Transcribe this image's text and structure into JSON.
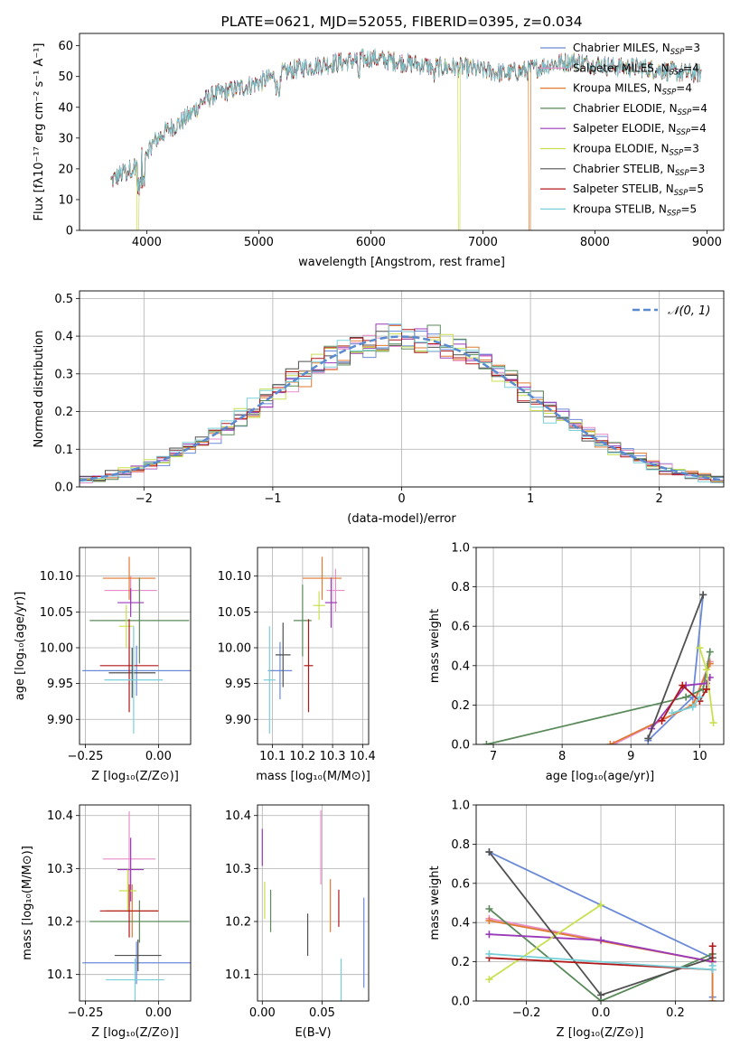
{
  "colors": [
    "#6a8ad8",
    "#e88ec8",
    "#e07a30",
    "#5a8a5a",
    "#9a3ab8",
    "#c8e050",
    "#505050",
    "#b01818",
    "#7ad0d8"
  ],
  "chart_data": [
    {
      "id": "spectrum",
      "type": "line",
      "title": "PLATE=0621, MJD=52055, FIBERID=0395, z=0.034",
      "xlabel": "wavelength [Angstrom, rest frame]",
      "ylabel": "Flux [fλ10⁻¹⁷ erg cm⁻² s⁻¹ A⁻¹]",
      "xlim": [
        3400,
        9150
      ],
      "ylim": [
        0,
        64
      ],
      "xticks": [
        4000,
        5000,
        6000,
        7000,
        8000,
        9000
      ],
      "yticks": [
        0,
        10,
        20,
        30,
        40,
        50,
        60
      ],
      "grid": false,
      "legend_loc": "right",
      "series": [
        {
          "name": "Chabrier MILES, N_SSP=3"
        },
        {
          "name": "Salpeter MILES, N_SSP=4"
        },
        {
          "name": "Kroupa MILES, N_SSP=4"
        },
        {
          "name": "Chabrier ELODIE, N_SSP=4"
        },
        {
          "name": "Salpeter ELODIE, N_SSP=4"
        },
        {
          "name": "Kroupa ELODIE, N_SSP=3"
        },
        {
          "name": "Chabrier STELIB, N_SSP=3"
        },
        {
          "name": "Salpeter STELIB, N_SSP=5"
        },
        {
          "name": "Kroupa STELIB, N_SSP=5"
        }
      ],
      "continuum": {
        "x": [
          3680,
          3800,
          3900,
          4000,
          4100,
          4200,
          4300,
          4400,
          4500,
          4600,
          4800,
          5000,
          5200,
          5400,
          5600,
          5800,
          6000,
          6200,
          6400,
          6600,
          6800,
          7000,
          7200,
          7400,
          7600,
          7800,
          8000,
          8200,
          8400,
          8600,
          8800,
          8950
        ],
        "y": [
          16,
          19,
          21,
          26,
          30,
          33,
          35,
          38,
          42,
          44,
          46,
          48,
          51,
          53,
          54,
          55,
          56,
          55,
          54,
          53,
          53,
          52,
          51,
          52,
          54,
          55,
          54,
          53,
          53,
          52,
          51,
          51
        ]
      },
      "drops": [
        {
          "color_index": 5,
          "x": 3920
        },
        {
          "color_index": 5,
          "x": 6790
        },
        {
          "color_index": 2,
          "x": 7420
        }
      ]
    },
    {
      "id": "residuals",
      "type": "line",
      "xlabel": "(data-model)/error",
      "ylabel": "Normed distribution",
      "xlim": [
        -2.5,
        2.5
      ],
      "ylim": [
        0,
        0.52
      ],
      "xticks": [
        -2,
        -1,
        0,
        1,
        2
      ],
      "yticks": [
        0.0,
        0.1,
        0.2,
        0.3,
        0.4,
        0.5
      ],
      "xtick_labels": [
        "−2",
        "−1",
        "0",
        "1",
        "2"
      ],
      "ytick_labels": [
        "0.0",
        "0.1",
        "0.2",
        "0.3",
        "0.4",
        "0.5"
      ],
      "grid": true,
      "legend_loc": "upper right",
      "reference": {
        "name": "𝒩(0, 1)",
        "mean": 0,
        "sigma": 1,
        "color": "#5a8ad0"
      },
      "bin_width": 0.1
    },
    {
      "id": "age-vs-Z",
      "type": "scatter",
      "xlabel": "Z [log₁₀(Z/Z⊙)]",
      "ylabel": "age  [log₁₀(age/yr)]",
      "xlim": [
        -0.27,
        0.11
      ],
      "ylim": [
        9.865,
        10.14
      ],
      "xticks": [
        -0.25,
        0.0
      ],
      "xtick_labels": [
        "−0.25",
        "0.00"
      ],
      "yticks": [
        9.9,
        9.95,
        10.0,
        10.05,
        10.1
      ],
      "ytick_labels": [
        "9.90",
        "9.95",
        "10.00",
        "10.05",
        "10.10"
      ],
      "grid": true,
      "points": [
        {
          "c": 0,
          "x": -0.075,
          "xe": 0.185,
          "y": 9.968,
          "ye": 0.035
        },
        {
          "c": 1,
          "x": -0.095,
          "xe": 0.09,
          "y": 10.08,
          "ye": 0.02
        },
        {
          "c": 2,
          "x": -0.1,
          "xe": 0.09,
          "y": 10.097,
          "ye": 0.03
        },
        {
          "c": 3,
          "x": -0.065,
          "xe": 0.17,
          "y": 10.038,
          "ye": 0.06
        },
        {
          "c": 4,
          "x": -0.095,
          "xe": 0.045,
          "y": 10.063,
          "ye": 0.02
        },
        {
          "c": 5,
          "x": -0.11,
          "xe": 0.025,
          "y": 10.03,
          "ye": 0.03
        },
        {
          "c": 6,
          "x": -0.09,
          "xe": 0.08,
          "y": 9.965,
          "ye": 0.035
        },
        {
          "c": 7,
          "x": -0.1,
          "xe": 0.1,
          "y": 9.975,
          "ye": 0.065
        },
        {
          "c": 8,
          "x": -0.085,
          "xe": 0.1,
          "y": 9.955,
          "ye": 0.075
        }
      ]
    },
    {
      "id": "age-vs-mass",
      "type": "scatter",
      "xlabel": "mass [log₁₀(M/M⊙)]",
      "ylabel": "",
      "xlim": [
        10.05,
        10.42
      ],
      "ylim": [
        9.865,
        10.14
      ],
      "xticks": [
        10.1,
        10.2,
        10.3,
        10.4
      ],
      "xtick_labels": [
        "10.1",
        "10.2",
        "10.3",
        "10.4"
      ],
      "yticks": [
        9.9,
        9.95,
        10.0,
        10.05,
        10.1
      ],
      "ytick_labels": [
        "9.90",
        "9.95",
        "10.00",
        "10.05",
        "10.10"
      ],
      "grid": true,
      "points": [
        {
          "c": 0,
          "x": 10.125,
          "xe": 0.04,
          "y": 9.968,
          "ye": 0.04
        },
        {
          "c": 1,
          "x": 10.31,
          "xe": 0.03,
          "y": 10.08,
          "ye": 0.03
        },
        {
          "c": 2,
          "x": 10.265,
          "xe": 0.065,
          "y": 10.097,
          "ye": 0.03
        },
        {
          "c": 3,
          "x": 10.2,
          "xe": 0.03,
          "y": 10.038,
          "ye": 0.05
        },
        {
          "c": 4,
          "x": 10.295,
          "xe": 0.02,
          "y": 10.063,
          "ye": 0.035
        },
        {
          "c": 5,
          "x": 10.255,
          "xe": 0.02,
          "y": 10.059,
          "ye": 0.02
        },
        {
          "c": 6,
          "x": 10.135,
          "xe": 0.025,
          "y": 9.99,
          "ye": 0.045
        },
        {
          "c": 7,
          "x": 10.22,
          "xe": 0.015,
          "y": 9.975,
          "ye": 0.065
        },
        {
          "c": 8,
          "x": 10.09,
          "xe": 0.02,
          "y": 9.955,
          "ye": 0.075
        }
      ]
    },
    {
      "id": "weight-vs-age",
      "type": "line",
      "xlabel": "age  [log₁₀(age/yr)]",
      "ylabel": "mass weight",
      "xlim": [
        6.75,
        10.35
      ],
      "ylim": [
        0,
        1.0
      ],
      "xticks": [
        7,
        8,
        9,
        10
      ],
      "xtick_labels": [
        "7",
        "8",
        "9",
        "10"
      ],
      "yticks": [
        0.0,
        0.2,
        0.4,
        0.6,
        0.8,
        1.0
      ],
      "ytick_labels": [
        "0.0",
        "0.2",
        "0.4",
        "0.6",
        "0.8",
        "1.0"
      ],
      "grid": true,
      "series": [
        {
          "c": 0,
          "x": [
            9.25,
            9.9,
            10.05
          ],
          "y": [
            0.02,
            0.24,
            0.76
          ]
        },
        {
          "c": 1,
          "x": [
            8.75,
            9.9,
            10.15
          ],
          "y": [
            0.0,
            0.2,
            0.42
          ]
        },
        {
          "c": 2,
          "x": [
            8.7,
            9.9,
            10.15
          ],
          "y": [
            0.0,
            0.2,
            0.41
          ]
        },
        {
          "c": 3,
          "x": [
            6.9,
            9.8,
            10.05,
            10.15
          ],
          "y": [
            0.0,
            0.24,
            0.28,
            0.47
          ]
        },
        {
          "c": 4,
          "x": [
            9.3,
            9.8,
            10.1,
            10.15
          ],
          "y": [
            0.08,
            0.3,
            0.31,
            0.34
          ]
        },
        {
          "c": 5,
          "x": [
            10.0,
            10.1,
            10.2
          ],
          "y": [
            0.49,
            0.38,
            0.11
          ]
        },
        {
          "c": 6,
          "x": [
            9.25,
            10.05
          ],
          "y": [
            0.03,
            0.76
          ]
        },
        {
          "c": 7,
          "x": [
            9.45,
            9.75,
            10.0,
            10.1
          ],
          "y": [
            0.12,
            0.3,
            0.22,
            0.28
          ]
        },
        {
          "c": 8,
          "x": [
            9.6,
            9.9,
            10.0
          ],
          "y": [
            0.16,
            0.19,
            0.24
          ]
        }
      ]
    },
    {
      "id": "mass-vs-Z",
      "type": "scatter",
      "xlabel": "Z [log₁₀(Z/Z⊙)]",
      "ylabel": "mass [log₁₀(M/M⊙)]",
      "xlim": [
        -0.27,
        0.11
      ],
      "ylim": [
        10.05,
        10.42
      ],
      "xticks": [
        -0.25,
        0.0
      ],
      "xtick_labels": [
        "−0.25",
        "0.00"
      ],
      "yticks": [
        10.1,
        10.2,
        10.3,
        10.4
      ],
      "ytick_labels": [
        "10.1",
        "10.2",
        "10.3",
        "10.4"
      ],
      "grid": true,
      "points": [
        {
          "c": 0,
          "x": -0.075,
          "xe": 0.185,
          "y": 10.122,
          "ye": 0.04
        },
        {
          "c": 1,
          "x": -0.1,
          "xe": 0.09,
          "y": 10.318,
          "ye": 0.09
        },
        {
          "c": 2,
          "x": -0.09,
          "xe": 0.09,
          "y": 10.22,
          "ye": 0.05
        },
        {
          "c": 3,
          "x": -0.065,
          "xe": 0.17,
          "y": 10.2,
          "ye": 0.04
        },
        {
          "c": 4,
          "x": -0.095,
          "xe": 0.045,
          "y": 10.298,
          "ye": 0.06
        },
        {
          "c": 5,
          "x": -0.105,
          "xe": 0.03,
          "y": 10.258,
          "ye": 0.04
        },
        {
          "c": 6,
          "x": -0.07,
          "xe": 0.08,
          "y": 10.136,
          "ye": 0.03
        },
        {
          "c": 7,
          "x": -0.1,
          "xe": 0.1,
          "y": 10.22,
          "ye": 0.05
        },
        {
          "c": 8,
          "x": -0.08,
          "xe": 0.1,
          "y": 10.09,
          "ye": 0.04
        }
      ]
    },
    {
      "id": "mass-vs-ebv",
      "type": "scatter",
      "xlabel": "E(B-V)",
      "ylabel": "",
      "xlim": [
        -0.004,
        0.089
      ],
      "ylim": [
        10.05,
        10.42
      ],
      "xticks": [
        0.0,
        0.05
      ],
      "xtick_labels": [
        "0.00",
        "0.05"
      ],
      "yticks": [
        10.1,
        10.2,
        10.3,
        10.4
      ],
      "ytick_labels": [
        "10.1",
        "10.2",
        "10.3",
        "10.4"
      ],
      "grid": true,
      "points": [
        {
          "c": 0,
          "x": 0.085,
          "xe": 0,
          "y": 10.16,
          "ye": 0.085
        },
        {
          "c": 1,
          "x": 0.049,
          "xe": 0,
          "y": 10.34,
          "ye": 0.07
        },
        {
          "c": 2,
          "x": 0.057,
          "xe": 0,
          "y": 10.23,
          "ye": 0.05
        },
        {
          "c": 3,
          "x": 0.007,
          "xe": 0,
          "y": 10.22,
          "ye": 0.04
        },
        {
          "c": 4,
          "x": 0.0,
          "xe": 0,
          "y": 10.34,
          "ye": 0.035
        },
        {
          "c": 5,
          "x": 0.002,
          "xe": 0,
          "y": 10.24,
          "ye": 0.035
        },
        {
          "c": 6,
          "x": 0.038,
          "xe": 0,
          "y": 10.175,
          "ye": 0.04
        },
        {
          "c": 7,
          "x": 0.064,
          "xe": 0,
          "y": 10.225,
          "ye": 0.035
        },
        {
          "c": 8,
          "x": 0.066,
          "xe": 0,
          "y": 10.09,
          "ye": 0.04
        }
      ]
    },
    {
      "id": "weight-vs-Z",
      "type": "line",
      "xlabel": "Z [log₁₀(Z/Z⊙)]",
      "ylabel": "mass weight",
      "xlim": [
        -0.335,
        0.33
      ],
      "ylim": [
        0,
        1.0
      ],
      "xticks": [
        -0.2,
        0.0,
        0.2
      ],
      "xtick_labels": [
        "−0.2",
        "0.0",
        "0.2"
      ],
      "yticks": [
        0.0,
        0.2,
        0.4,
        0.6,
        0.8,
        1.0
      ],
      "ytick_labels": [
        "0.0",
        "0.2",
        "0.4",
        "0.6",
        "0.8",
        "1.0"
      ],
      "grid": true,
      "series": [
        {
          "c": 0,
          "x": [
            -0.3,
            0.3,
            0.3
          ],
          "y": [
            0.76,
            0.22,
            0.02
          ]
        },
        {
          "c": 1,
          "x": [
            -0.3,
            0.3
          ],
          "y": [
            0.42,
            0.2
          ]
        },
        {
          "c": 2,
          "x": [
            -0.3,
            0.3,
            0.3
          ],
          "y": [
            0.41,
            0.2,
            0.0
          ]
        },
        {
          "c": 3,
          "x": [
            -0.3,
            0.0,
            0.3
          ],
          "y": [
            0.47,
            0.0,
            0.24
          ]
        },
        {
          "c": 4,
          "x": [
            -0.3,
            0.0,
            0.3
          ],
          "y": [
            0.34,
            0.31,
            0.2
          ]
        },
        {
          "c": 5,
          "x": [
            -0.3,
            0.0
          ],
          "y": [
            0.11,
            0.49
          ]
        },
        {
          "c": 6,
          "x": [
            -0.3,
            0.0,
            0.3
          ],
          "y": [
            0.76,
            0.03,
            0.22
          ]
        },
        {
          "c": 7,
          "x": [
            -0.3,
            0.3,
            0.3
          ],
          "y": [
            0.22,
            0.16,
            0.28
          ]
        },
        {
          "c": 8,
          "x": [
            -0.3,
            0.3,
            0.3
          ],
          "y": [
            0.24,
            0.16,
            0.18
          ]
        }
      ]
    }
  ]
}
